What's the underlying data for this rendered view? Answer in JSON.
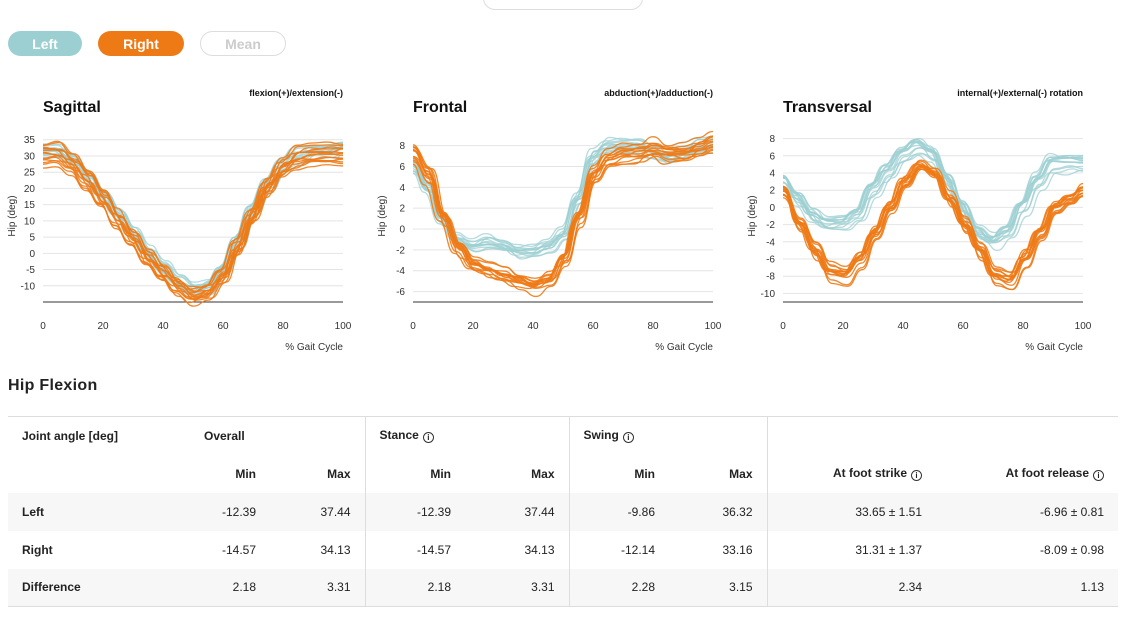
{
  "toggles": [
    {
      "label": "Left"
    },
    {
      "label": "Right"
    },
    {
      "label": "Mean"
    }
  ],
  "colors": {
    "left": "#9ccfd2",
    "right": "#ee7a16",
    "grid": "#e4e4e4"
  },
  "chart_data": [
    {
      "type": "line",
      "title": "Sagittal",
      "subtitle": "flexion(+)/extension(-)",
      "xlabel": "% Gait Cycle",
      "ylabel": "Hip (deg)",
      "xlim": [
        0,
        100
      ],
      "ylim": [
        -15,
        38
      ],
      "xticks": [
        0,
        20,
        40,
        60,
        80,
        100
      ],
      "yticks": [
        35,
        30,
        25,
        20,
        15,
        10,
        5,
        0,
        -5,
        -10
      ],
      "grid": true,
      "series_base": {
        "x": [
          0,
          5,
          10,
          15,
          20,
          25,
          30,
          35,
          40,
          45,
          50,
          55,
          60,
          65,
          70,
          75,
          80,
          85,
          90,
          95,
          100
        ],
        "left": [
          32,
          32,
          29,
          24,
          18,
          12,
          6,
          0,
          -5,
          -9,
          -12,
          -11,
          -5,
          4,
          14,
          22,
          28,
          31,
          32,
          32,
          33
        ],
        "right": [
          31,
          31,
          28,
          23,
          17,
          11,
          5,
          -1,
          -6,
          -10,
          -13,
          -12,
          -7,
          2,
          12,
          21,
          27,
          30,
          31,
          31,
          31
        ]
      }
    },
    {
      "type": "line",
      "title": "Frontal",
      "subtitle": "abduction(+)/adduction(-)",
      "xlabel": "% Gait Cycle",
      "ylabel": "Hip (deg)",
      "xlim": [
        0,
        100
      ],
      "ylim": [
        -7,
        9.5
      ],
      "xticks": [
        0,
        20,
        40,
        60,
        80,
        100
      ],
      "yticks": [
        8,
        6,
        4,
        2,
        0,
        -2,
        -4,
        -6
      ],
      "grid": true,
      "series_base": {
        "x": [
          0,
          5,
          10,
          15,
          20,
          25,
          30,
          35,
          40,
          45,
          50,
          55,
          60,
          65,
          70,
          75,
          80,
          85,
          90,
          95,
          100
        ],
        "left": [
          6,
          4,
          1,
          -1,
          -1.5,
          -1.2,
          -1.5,
          -2,
          -2,
          -1.5,
          -0.5,
          3,
          7,
          8,
          8,
          8,
          7.5,
          7,
          7.5,
          8,
          8
        ],
        "right": [
          7,
          5,
          1,
          -2,
          -3.5,
          -4,
          -4.5,
          -5,
          -5.5,
          -5,
          -3,
          1,
          5,
          6.5,
          7,
          7,
          7.5,
          7,
          7,
          7.5,
          8
        ]
      }
    },
    {
      "type": "line",
      "title": "Transversal",
      "subtitle": "internal(+)/external(-) rotation",
      "xlabel": "% Gait Cycle",
      "ylabel": "Hip (deg)",
      "xlim": [
        0,
        100
      ],
      "ylim": [
        -11,
        9
      ],
      "xticks": [
        0,
        20,
        40,
        60,
        80,
        100
      ],
      "yticks": [
        8,
        6,
        4,
        2,
        0,
        -2,
        -4,
        -6,
        -8,
        -10
      ],
      "grid": true,
      "series_base": {
        "x": [
          0,
          5,
          10,
          15,
          20,
          25,
          30,
          35,
          40,
          45,
          50,
          55,
          60,
          65,
          70,
          75,
          80,
          85,
          90,
          95,
          100
        ],
        "left": [
          3,
          1,
          -1,
          -2,
          -2,
          -1,
          2,
          4,
          6,
          7,
          6,
          3,
          0,
          -3,
          -4,
          -3,
          0,
          3,
          5,
          5,
          5
        ],
        "right": [
          2,
          -2,
          -5,
          -7.5,
          -8,
          -6,
          -3,
          0,
          3,
          5,
          4,
          1,
          -2,
          -5,
          -8,
          -8.5,
          -6,
          -3,
          0,
          1,
          2
        ]
      }
    }
  ],
  "table": {
    "section_title": "Hip Flexion",
    "corner": "Joint angle [deg]",
    "groups": [
      "Overall",
      "Stance",
      "Swing"
    ],
    "min_label": "Min",
    "max_label": "Max",
    "foot_strike": "At foot strike",
    "foot_release": "At foot release",
    "rows": [
      {
        "label": "Left",
        "overall_min": "-12.39",
        "overall_max": "37.44",
        "stance_min": "-12.39",
        "stance_max": "37.44",
        "swing_min": "-9.86",
        "swing_max": "36.32",
        "strike": "33.65 ± 1.51",
        "release": "-6.96 ± 0.81"
      },
      {
        "label": "Right",
        "overall_min": "-14.57",
        "overall_max": "34.13",
        "stance_min": "-14.57",
        "stance_max": "34.13",
        "swing_min": "-12.14",
        "swing_max": "33.16",
        "strike": "31.31 ± 1.37",
        "release": "-8.09 ± 0.98"
      },
      {
        "label": "Difference",
        "overall_min": "2.18",
        "overall_max": "3.31",
        "stance_min": "2.18",
        "stance_max": "3.31",
        "swing_min": "2.28",
        "swing_max": "3.15",
        "strike": "2.34",
        "release": "1.13"
      }
    ]
  }
}
